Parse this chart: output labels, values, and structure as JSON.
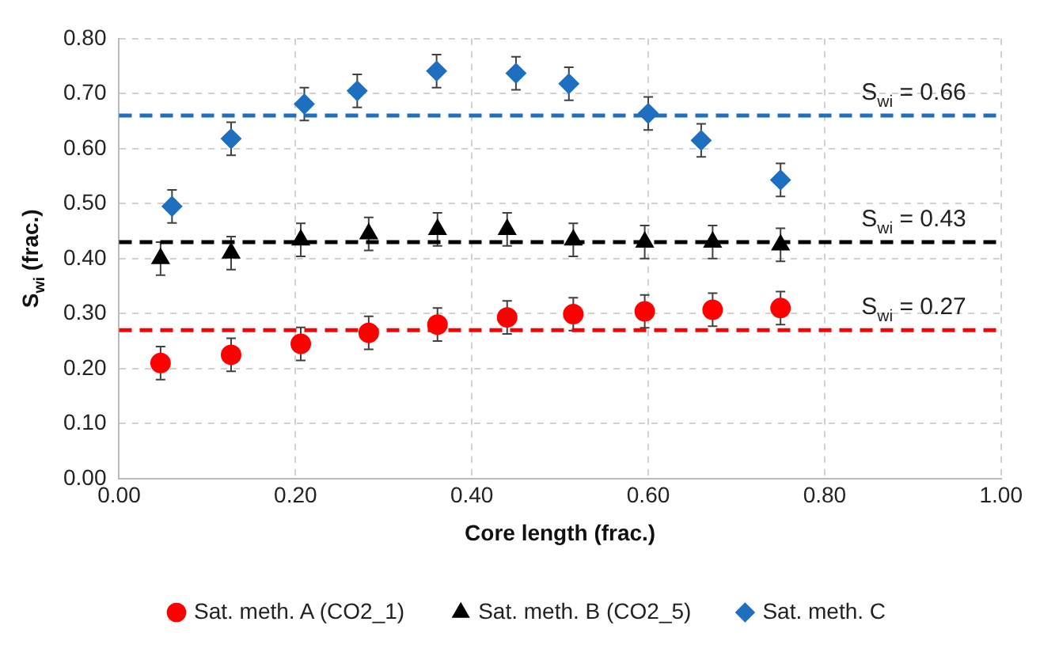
{
  "chart_data": {
    "type": "scatter",
    "xlabel": "Core length (frac.)",
    "ylabel": "S$_{wi}$ (frac.)",
    "xlim": [
      0,
      1
    ],
    "xticks": [
      {
        "value": 0,
        "label": "0.00"
      },
      {
        "value": 0.2,
        "label": "0.20"
      },
      {
        "value": 0.4,
        "label": "0.40"
      },
      {
        "value": 0.6,
        "label": "0.60"
      },
      {
        "value": 0.8,
        "label": "0.80"
      },
      {
        "value": 1,
        "label": "1.00"
      }
    ],
    "ylim": [
      0,
      0.8
    ],
    "yticks": [
      {
        "value": 0,
        "label": "0.00"
      },
      {
        "value": 0.1,
        "label": "0.10"
      },
      {
        "value": 0.2,
        "label": "0.20"
      },
      {
        "value": 0.3,
        "label": "0.30"
      },
      {
        "value": 0.4,
        "label": "0.40"
      },
      {
        "value": 0.5,
        "label": "0.50"
      },
      {
        "value": 0.6,
        "label": "0.60"
      },
      {
        "value": 0.7,
        "label": "0.70"
      },
      {
        "value": 0.8,
        "label": "0.80"
      }
    ],
    "grid": true,
    "legend": "bottom",
    "series": [
      {
        "name": "Sat. meth. A (CO2_1)",
        "color": "#ff0000",
        "marker": "circle",
        "x": [
          0.047,
          0.127,
          0.206,
          0.283,
          0.361,
          0.44,
          0.515,
          0.596,
          0.673,
          0.75
        ],
        "values": [
          0.21,
          0.225,
          0.245,
          0.265,
          0.28,
          0.293,
          0.299,
          0.304,
          0.307,
          0.31
        ],
        "errors": [
          0.03,
          0.03,
          0.03,
          0.03,
          0.03,
          0.03,
          0.03,
          0.03,
          0.03,
          0.03
        ]
      },
      {
        "name": "Sat. meth. B (CO2_5)",
        "color": "#000000",
        "marker": "triangle",
        "x": [
          0.047,
          0.127,
          0.206,
          0.283,
          0.361,
          0.44,
          0.515,
          0.596,
          0.673,
          0.75
        ],
        "values": [
          0.4,
          0.41,
          0.434,
          0.445,
          0.453,
          0.453,
          0.434,
          0.43,
          0.43,
          0.425
        ],
        "errors": [
          0.03,
          0.03,
          0.03,
          0.03,
          0.03,
          0.03,
          0.03,
          0.03,
          0.03,
          0.03
        ]
      },
      {
        "name": "Sat. meth. C",
        "color": "#1f6fc0",
        "marker": "diamond",
        "x": [
          0.06,
          0.127,
          0.21,
          0.27,
          0.36,
          0.45,
          0.51,
          0.6,
          0.66,
          0.75
        ],
        "values": [
          0.495,
          0.618,
          0.681,
          0.705,
          0.741,
          0.737,
          0.718,
          0.664,
          0.615,
          0.543
        ],
        "errors": [
          0.03,
          0.03,
          0.03,
          0.03,
          0.03,
          0.03,
          0.03,
          0.03,
          0.03,
          0.03
        ]
      }
    ],
    "ref_lines": [
      {
        "axis": "y",
        "value": 0.66,
        "label": "S$_{wi}$ = 0.66",
        "color": "#1f6fc0",
        "line_style": "dashed"
      },
      {
        "axis": "y",
        "value": 0.43,
        "label": "S$_{wi}$ = 0.43",
        "color": "#000000",
        "line_style": "dashed"
      },
      {
        "axis": "y",
        "value": 0.27,
        "label": "S$_{wi}$ = 0.27",
        "color": "#ff0000",
        "line_style": "dashed"
      }
    ]
  }
}
